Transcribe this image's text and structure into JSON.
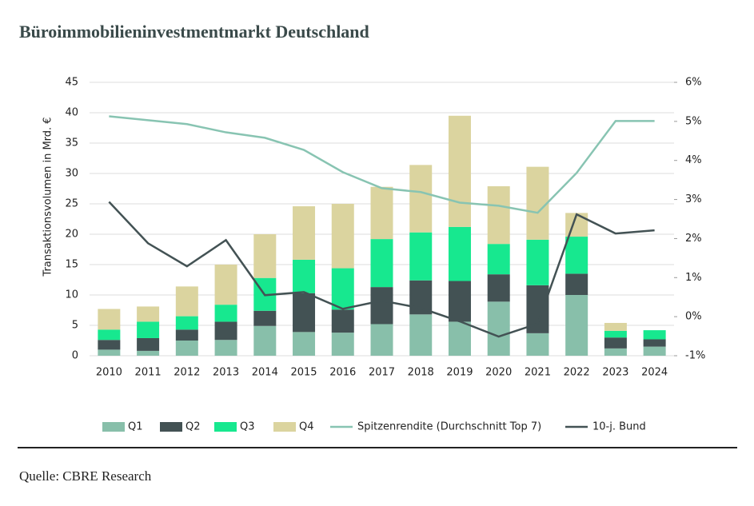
{
  "chart_data": {
    "type": "bar",
    "stacked": true,
    "title": "Büroimmobilieninvestmentmarkt Deutschland",
    "ylabel": "Transaktionsvolumen in Mrd. €",
    "source": "Quelle: CBRE Research",
    "categories": [
      "2010",
      "2011",
      "2012",
      "2013",
      "2014",
      "2015",
      "2016",
      "2017",
      "2018",
      "2019",
      "2020",
      "2021",
      "2022",
      "2023",
      "2024"
    ],
    "series": [
      {
        "name": "Q1",
        "color": "#88bfaa",
        "values": [
          1.0,
          0.8,
          2.5,
          2.6,
          4.9,
          3.9,
          3.8,
          5.2,
          6.8,
          5.6,
          8.9,
          3.7,
          10.0,
          1.2,
          1.5
        ]
      },
      {
        "name": "Q2",
        "color": "#435254",
        "values": [
          1.6,
          2.1,
          1.8,
          3.0,
          2.5,
          6.4,
          3.8,
          6.1,
          5.6,
          6.7,
          4.5,
          7.9,
          3.5,
          1.8,
          1.2
        ]
      },
      {
        "name": "Q3",
        "color": "#17e88f",
        "values": [
          1.7,
          2.7,
          2.2,
          2.8,
          5.4,
          5.5,
          6.8,
          7.9,
          7.9,
          8.9,
          5.0,
          7.5,
          6.1,
          1.1,
          1.5
        ]
      },
      {
        "name": "Q4",
        "color": "#dbd49f",
        "values": [
          3.4,
          2.5,
          4.9,
          6.6,
          7.2,
          8.8,
          10.6,
          8.6,
          11.1,
          18.3,
          9.5,
          12.0,
          3.9,
          1.3,
          null
        ]
      },
      {
        "name": "Spitzenrendite (Durchschnitt Top 7)",
        "type": "line",
        "axis": "y2",
        "color": "#88c4b2",
        "values": [
          5.13,
          5.03,
          4.93,
          4.72,
          4.58,
          4.27,
          3.7,
          3.29,
          3.19,
          2.92,
          2.84,
          2.66,
          3.68,
          5.01,
          5.01
        ]
      },
      {
        "name": "10-j. Bund",
        "type": "line",
        "axis": "y2",
        "color": "#435254",
        "values": [
          2.94,
          1.88,
          1.29,
          1.96,
          0.55,
          0.63,
          0.2,
          0.41,
          0.22,
          -0.12,
          -0.51,
          -0.18,
          2.62,
          2.13,
          2.21
        ]
      }
    ],
    "ylim": [
      0,
      45
    ],
    "yticks": [
      0,
      5,
      10,
      15,
      20,
      25,
      30,
      35,
      40,
      45
    ],
    "y2lim": [
      -1,
      6
    ],
    "y2ticks": [
      {
        "value": -1,
        "label": "-1%"
      },
      {
        "value": 0,
        "label": "0%"
      },
      {
        "value": 1,
        "label": "1%"
      },
      {
        "value": 2,
        "label": "2%"
      },
      {
        "value": 3,
        "label": "3%"
      },
      {
        "value": 4,
        "label": "4%"
      },
      {
        "value": 5,
        "label": "5%"
      },
      {
        "value": 6,
        "label": "6%"
      }
    ],
    "grid": true,
    "legend": "bottom"
  }
}
